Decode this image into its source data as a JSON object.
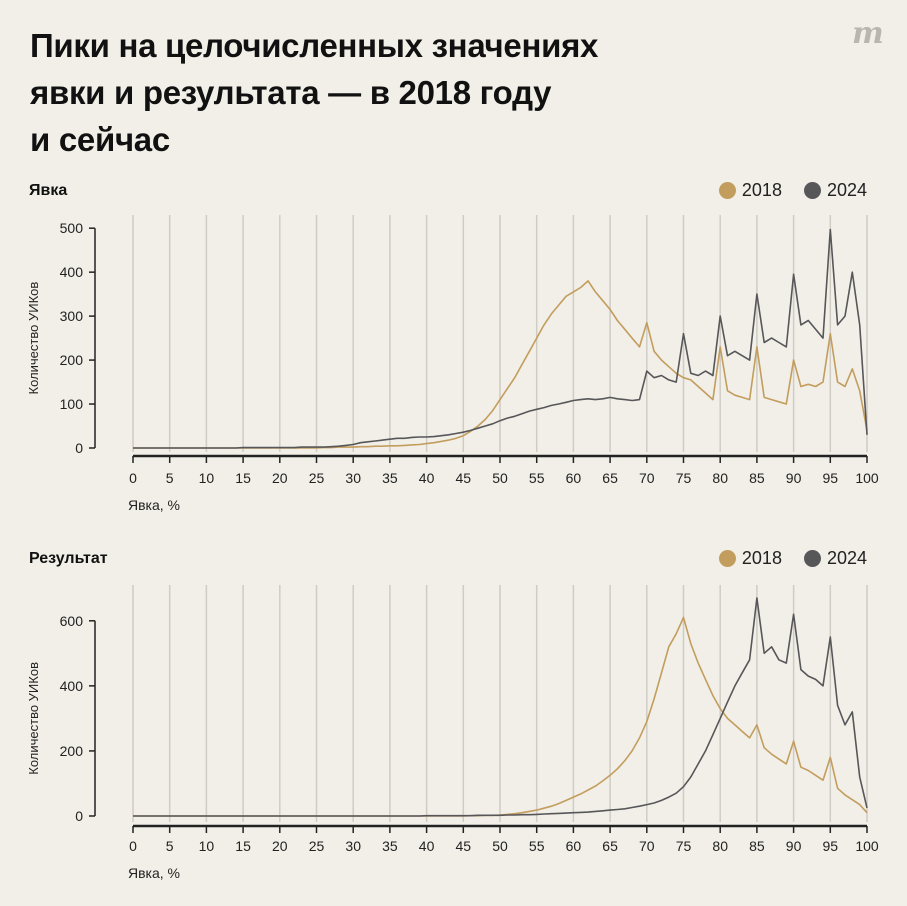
{
  "title": "Пики на целочисленных значениях\nявки и результата — в 2018 году\nи сейчас",
  "logo": "m",
  "colors": {
    "2018": "#c39d5e",
    "2024": "#57575a",
    "grid": "#cfccc4",
    "axis": "#222222"
  },
  "chart_data": [
    {
      "type": "line",
      "title": "Явка",
      "xlabel": "Явка, %",
      "ylabel": "Количество УИКов",
      "xlim": [
        0,
        100
      ],
      "ylim": [
        0,
        530
      ],
      "xticks": [
        "0",
        "5",
        "10",
        "15",
        "20",
        "25",
        "30",
        "35",
        "40",
        "45",
        "50",
        "55",
        "60",
        "65",
        "70",
        "75",
        "80",
        "85",
        "90",
        "95",
        "100"
      ],
      "yticks": [
        "0",
        "100",
        "200",
        "300",
        "400",
        "500"
      ],
      "grid": "vertical",
      "legend": "top-right",
      "series": [
        {
          "name": "2018",
          "values": [
            0,
            0,
            0,
            0,
            0,
            0,
            0,
            0,
            0,
            0,
            0,
            0,
            0,
            0,
            0,
            0,
            0,
            0,
            0,
            0,
            0,
            0,
            0,
            0,
            0,
            0,
            1,
            1,
            2,
            2,
            2,
            3,
            3,
            4,
            4,
            5,
            5,
            6,
            7,
            8,
            10,
            12,
            15,
            18,
            22,
            28,
            38,
            50,
            65,
            85,
            110,
            135,
            160,
            190,
            220,
            250,
            280,
            305,
            325,
            345,
            355,
            365,
            380,
            355,
            335,
            315,
            290,
            270,
            250,
            230,
            285,
            220,
            200,
            185,
            170,
            160,
            155,
            140,
            125,
            110,
            230,
            130,
            120,
            115,
            110,
            230,
            115,
            110,
            105,
            100,
            200,
            140,
            145,
            140,
            150,
            260,
            150,
            140,
            180,
            130,
            40
          ]
        },
        {
          "name": "2024",
          "values": [
            0,
            0,
            0,
            0,
            0,
            0,
            0,
            0,
            0,
            0,
            0,
            0,
            0,
            0,
            0,
            1,
            1,
            1,
            1,
            1,
            1,
            1,
            1,
            2,
            2,
            2,
            2,
            3,
            4,
            6,
            8,
            12,
            14,
            16,
            18,
            20,
            22,
            22,
            24,
            25,
            25,
            26,
            28,
            30,
            33,
            36,
            40,
            45,
            50,
            55,
            62,
            68,
            72,
            78,
            84,
            88,
            92,
            97,
            100,
            104,
            108,
            110,
            112,
            110,
            112,
            115,
            112,
            110,
            108,
            110,
            175,
            160,
            165,
            155,
            150,
            260,
            170,
            165,
            175,
            165,
            300,
            210,
            220,
            210,
            200,
            350,
            240,
            250,
            240,
            230,
            395,
            280,
            290,
            270,
            250,
            497,
            280,
            300,
            400,
            280,
            30
          ]
        }
      ]
    },
    {
      "type": "line",
      "title": "Результат",
      "xlabel": "Явка, %",
      "ylabel": "Количество УИКов",
      "xlim": [
        0,
        100
      ],
      "ylim": [
        0,
        710
      ],
      "xticks": [
        "0",
        "5",
        "10",
        "15",
        "20",
        "25",
        "30",
        "35",
        "40",
        "45",
        "50",
        "55",
        "60",
        "65",
        "70",
        "75",
        "80",
        "85",
        "90",
        "95",
        "100"
      ],
      "yticks": [
        "0",
        "200",
        "400",
        "600"
      ],
      "grid": "vertical",
      "legend": "top-right",
      "series": [
        {
          "name": "2018",
          "values": [
            0,
            0,
            0,
            0,
            0,
            0,
            0,
            0,
            0,
            0,
            0,
            0,
            0,
            0,
            0,
            0,
            0,
            0,
            0,
            0,
            0,
            0,
            0,
            0,
            0,
            0,
            0,
            0,
            0,
            0,
            0,
            0,
            0,
            0,
            0,
            0,
            0,
            0,
            0,
            0,
            0,
            0,
            0,
            0,
            0,
            0,
            1,
            1,
            2,
            2,
            3,
            5,
            7,
            10,
            14,
            18,
            24,
            30,
            38,
            48,
            58,
            68,
            80,
            92,
            108,
            125,
            145,
            170,
            200,
            240,
            290,
            360,
            440,
            520,
            560,
            610,
            530,
            470,
            420,
            370,
            330,
            300,
            280,
            260,
            240,
            280,
            210,
            190,
            175,
            160,
            230,
            150,
            140,
            125,
            110,
            180,
            85,
            65,
            50,
            35,
            10
          ]
        },
        {
          "name": "2024",
          "values": [
            0,
            0,
            0,
            0,
            0,
            0,
            0,
            0,
            0,
            0,
            0,
            0,
            0,
            0,
            0,
            0,
            0,
            0,
            0,
            0,
            0,
            0,
            0,
            0,
            0,
            0,
            0,
            0,
            0,
            0,
            0,
            0,
            0,
            0,
            0,
            0,
            0,
            0,
            0,
            0,
            1,
            1,
            1,
            1,
            1,
            1,
            1,
            2,
            2,
            2,
            2,
            3,
            3,
            4,
            4,
            5,
            6,
            7,
            8,
            9,
            10,
            11,
            12,
            14,
            16,
            18,
            20,
            22,
            26,
            30,
            35,
            40,
            48,
            58,
            70,
            90,
            120,
            160,
            200,
            250,
            300,
            350,
            400,
            440,
            480,
            670,
            500,
            520,
            480,
            470,
            620,
            450,
            430,
            420,
            400,
            550,
            340,
            280,
            320,
            120,
            25
          ]
        }
      ]
    }
  ]
}
